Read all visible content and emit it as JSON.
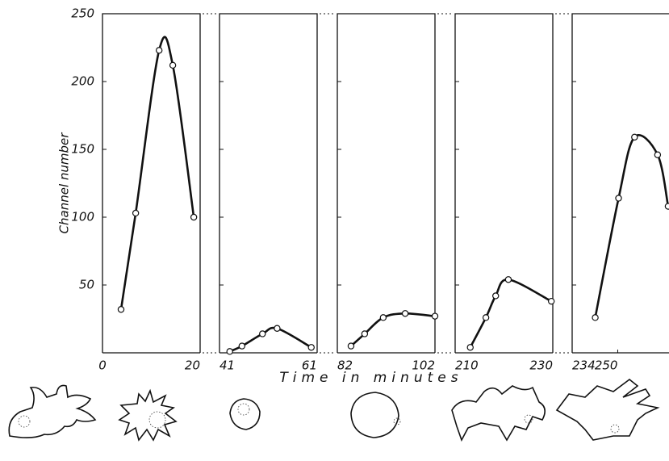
{
  "chart_data": {
    "type": "line",
    "y_label": "Channel number",
    "x_label": "Time in minutes",
    "ylim": [
      0,
      250
    ],
    "yticks": [
      50,
      100,
      150,
      200,
      250
    ],
    "panels": [
      {
        "xlim": [
          0,
          20
        ],
        "xticks": [
          0,
          20
        ],
        "x": [
          3.8,
          6.8,
          11.6,
          14.4,
          18.7
        ],
        "values": [
          32,
          103,
          223,
          212,
          100
        ]
      },
      {
        "xlim": [
          41,
          61
        ],
        "xticks": [
          41,
          61
        ],
        "x": [
          43.1,
          45.6,
          49.8,
          52.8,
          59.8
        ],
        "values": [
          1,
          5,
          14,
          18,
          4
        ]
      },
      {
        "xlim": [
          82,
          102
        ],
        "xticks": [
          82,
          102
        ],
        "x": [
          84.8,
          87.6,
          91.4,
          95.9,
          102
        ],
        "values": [
          5,
          14,
          26,
          29,
          27
        ]
      },
      {
        "xlim": [
          210,
          230
        ],
        "xticks": [
          210,
          230
        ],
        "x": [
          213.1,
          216.3,
          218.3,
          220.9,
          229.7
        ],
        "values": [
          4,
          26,
          42,
          54,
          38
        ]
      },
      {
        "xlim": [
          234,
          268
        ],
        "xticks": [
          234,
          250
        ],
        "x": [
          242.1,
          250.3,
          255.9,
          264.0,
          267.7
        ],
        "values": [
          26,
          114,
          159,
          146,
          108
        ]
      }
    ]
  }
}
